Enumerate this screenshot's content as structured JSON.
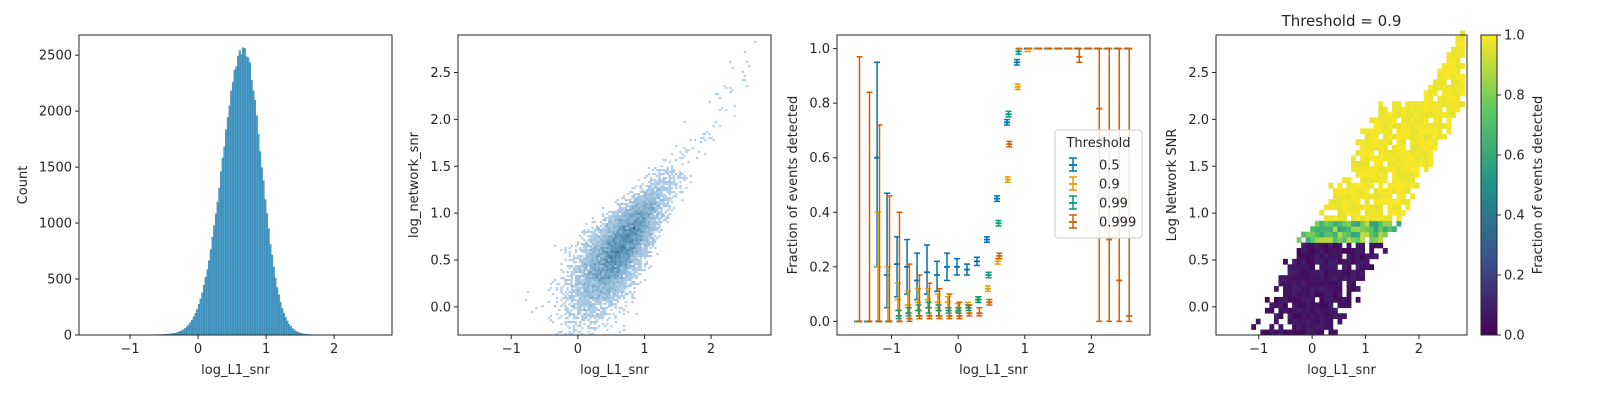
{
  "chart_data": [
    {
      "type": "histogram",
      "xlabel": "log_L1_snr",
      "ylabel": "Count",
      "xlim": [
        -1.75,
        2.85
      ],
      "ylim": [
        0,
        2680
      ],
      "xticks": [
        -1,
        0,
        1,
        2
      ],
      "yticks": [
        0,
        500,
        1000,
        1500,
        2000,
        2500
      ],
      "bin_width": 0.025,
      "distribution": {
        "shape": "approx. normal",
        "peak_x": 0.67,
        "peak_count": 2550,
        "left_sigma": 0.31,
        "right_sigma": 0.26,
        "support": [
          -1.6,
          2.7
        ]
      },
      "color": "#4aa0cc"
    },
    {
      "type": "heatmap",
      "xlabel": "log_L1_snr",
      "ylabel": "log_network_snr",
      "xlim": [
        -1.8,
        2.9
      ],
      "ylim": [
        -0.3,
        2.9
      ],
      "xticks": [
        -1,
        0,
        1,
        2
      ],
      "yticks": [
        0.0,
        0.5,
        1.0,
        1.5,
        2.0,
        2.5
      ],
      "density": {
        "trend": "log_network_snr ≈ log_L1_snr",
        "peak_at": [
          0.7,
          0.7
        ]
      },
      "colors": {
        "low": "#c6dcf5",
        "high": "#0b5e86"
      }
    },
    {
      "type": "scatter",
      "error_bars": true,
      "xlabel": "log_L1_snr",
      "ylabel": "Fraction of events detected",
      "xlim": [
        -1.82,
        2.88
      ],
      "ylim": [
        -0.05,
        1.05
      ],
      "xticks": [
        -1,
        0,
        1,
        2
      ],
      "yticks": [
        0.0,
        0.2,
        0.4,
        0.6,
        0.8,
        1.0
      ],
      "x": [
        -1.5,
        -1.35,
        -1.2,
        -1.05,
        -0.9,
        -0.75,
        -0.6,
        -0.45,
        -0.3,
        -0.15,
        0.0,
        0.15,
        0.3,
        0.45,
        0.6,
        0.75,
        0.9,
        1.05,
        1.2,
        1.35,
        1.5,
        1.65,
        1.8,
        1.95,
        2.1,
        2.25,
        2.4,
        2.55
      ],
      "legend": {
        "title": "Threshold",
        "position": "center right"
      },
      "series": [
        {
          "name": "0.5",
          "color": "#0072b2",
          "values": [
            0.0,
            0.0,
            0.6,
            0.17,
            0.21,
            0.2,
            0.15,
            0.18,
            0.17,
            0.2,
            0.2,
            0.19,
            0.22,
            0.3,
            0.45,
            0.73,
            0.95,
            1.0,
            1.0,
            1.0,
            1.0,
            1.0,
            1.0,
            1.0,
            1.0,
            1.0,
            1.0,
            1.0
          ],
          "err_low": [
            0,
            0,
            0.4,
            0.12,
            0.12,
            0.1,
            0.07,
            0.08,
            0.06,
            0.05,
            0.03,
            0.02,
            0.015,
            0.01,
            0.01,
            0.01,
            0.01,
            0.0,
            0.0,
            0.0,
            0.0,
            0.0,
            0.0,
            0.0,
            0.0,
            0.0,
            0.0,
            0.0
          ],
          "err_high": [
            0,
            0,
            0.35,
            0.3,
            0.1,
            0.1,
            0.1,
            0.1,
            0.05,
            0.05,
            0.03,
            0.02,
            0.015,
            0.01,
            0.01,
            0.01,
            0.01,
            0.0,
            0.0,
            0.0,
            0.0,
            0.0,
            0.0,
            0.0,
            0.0,
            0.0,
            0.0,
            0.0
          ]
        },
        {
          "name": "0.9",
          "color": "#e69f00",
          "values": [
            0.0,
            0.0,
            0.2,
            0.0,
            0.08,
            0.06,
            0.07,
            0.08,
            0.07,
            0.07,
            0.05,
            0.06,
            0.08,
            0.12,
            0.22,
            0.52,
            0.86,
            0.99,
            1.0,
            1.0,
            1.0,
            1.0,
            1.0,
            1.0,
            1.0,
            1.0,
            1.0,
            1.0
          ],
          "err_low": [
            0,
            0,
            0.2,
            0,
            0.04,
            0.03,
            0.03,
            0.03,
            0.02,
            0.02,
            0.015,
            0.01,
            0.01,
            0.01,
            0.01,
            0.01,
            0.01,
            0.0,
            0.0,
            0.0,
            0.0,
            0.0,
            0.0,
            0.0,
            0.0,
            0.0,
            0.0,
            0.0
          ],
          "err_high": [
            0,
            0,
            0.2,
            0.2,
            0.06,
            0.05,
            0.05,
            0.04,
            0.03,
            0.02,
            0.015,
            0.01,
            0.01,
            0.01,
            0.01,
            0.01,
            0.01,
            0.0,
            0.0,
            0.0,
            0.0,
            0.0,
            0.0,
            0.0,
            0.0,
            0.0,
            0.0,
            0.0
          ]
        },
        {
          "name": "0.99",
          "color": "#009e73",
          "values": [
            0.0,
            0.0,
            0.0,
            0.0,
            0.02,
            0.03,
            0.04,
            0.05,
            0.04,
            0.04,
            0.04,
            0.05,
            0.08,
            0.17,
            0.36,
            0.76,
            0.99,
            1.0,
            1.0,
            1.0,
            1.0,
            1.0,
            1.0,
            1.0,
            1.0,
            1.0,
            1.0,
            1.0
          ],
          "err_low": [
            0,
            0,
            0,
            0,
            0.01,
            0.01,
            0.02,
            0.02,
            0.02,
            0.01,
            0.01,
            0.01,
            0.01,
            0.01,
            0.01,
            0.01,
            0.01,
            0.0,
            0.0,
            0.0,
            0.0,
            0.0,
            0.0,
            0.0,
            0.0,
            0.0,
            0.0,
            0.0
          ],
          "err_high": [
            0,
            0,
            0,
            0,
            0.02,
            0.02,
            0.02,
            0.02,
            0.02,
            0.01,
            0.01,
            0.01,
            0.01,
            0.01,
            0.01,
            0.01,
            0.01,
            0.0,
            0.0,
            0.0,
            0.0,
            0.0,
            0.0,
            0.0,
            0.0,
            0.0,
            0.0,
            0.0
          ]
        },
        {
          "name": "0.999",
          "color": "#d55e00",
          "values": [
            0.0,
            0.0,
            0.0,
            0.0,
            0.0,
            0.01,
            0.02,
            0.02,
            0.02,
            0.02,
            0.02,
            0.03,
            0.03,
            0.07,
            0.24,
            0.65,
            1.0,
            1.0,
            1.0,
            1.0,
            1.0,
            1.0,
            0.97,
            1.0,
            0.78,
            0.3,
            0.15,
            0.02
          ],
          "err_low": [
            0,
            0,
            0,
            0,
            0,
            0.01,
            0.01,
            0.01,
            0.01,
            0.01,
            0.01,
            0.01,
            0.01,
            0.01,
            0.01,
            0.01,
            0.0,
            0.0,
            0.0,
            0.0,
            0.0,
            0.0,
            0.02,
            0.0,
            0.78,
            0.3,
            0.15,
            0.02
          ],
          "err_high": [
            0.97,
            0.84,
            0.72,
            0.46,
            0.4,
            0.2,
            0.15,
            0.12,
            0.1,
            0.08,
            0.05,
            0.03,
            0.02,
            0.01,
            0.01,
            0.01,
            0.0,
            0.0,
            0.0,
            0.0,
            0.0,
            0.0,
            0.03,
            0.0,
            0.22,
            0.7,
            0.85,
            0.98
          ]
        }
      ]
    },
    {
      "type": "heatmap",
      "title": "Threshold = 0.9",
      "xlabel": "log_L1_snr",
      "ylabel": "Log Network SNR",
      "xlim": [
        -1.8,
        2.9
      ],
      "ylim": [
        -0.3,
        2.9
      ],
      "xticks": [
        -1,
        0,
        1,
        2
      ],
      "yticks": [
        0.0,
        0.5,
        1.0,
        1.5,
        2.0,
        2.5
      ],
      "colorbar": {
        "label": "Fraction of events detected",
        "ticks": [
          0.0,
          0.2,
          0.4,
          0.6,
          0.8,
          1.0
        ],
        "range": [
          0,
          1
        ],
        "colormap": "viridis"
      },
      "value_pattern": {
        "below_log_network_snr": 0.7,
        "low_value": 0.0,
        "transition_band": [
          0.7,
          0.9
        ],
        "above_log_network_snr": 0.9,
        "high_value": 1.0
      }
    }
  ]
}
